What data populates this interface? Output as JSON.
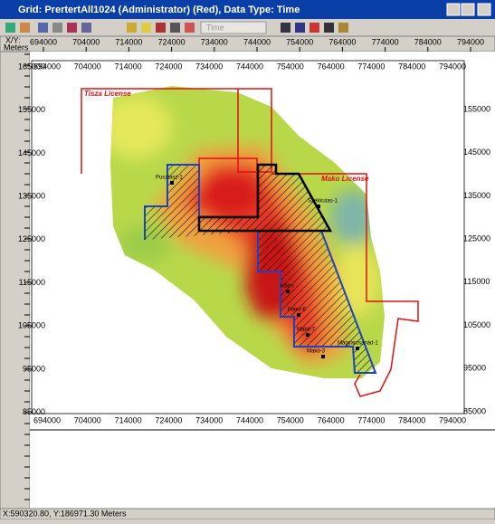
{
  "window": {
    "title": "Grid: PrertertAll1024 (Administrator) (Red), Data Type: Time"
  },
  "toolbar": {
    "dropdown": "Time"
  },
  "ruler": {
    "corner": [
      "X/Y:",
      "Meters"
    ],
    "x_labels": [
      "694000",
      "704000",
      "714000",
      "724000",
      "734000",
      "744000",
      "754000",
      "764000",
      "774000",
      "784000",
      "794000"
    ]
  },
  "map": {
    "x_labels": [
      "694000",
      "704000",
      "714000",
      "724000",
      "734000",
      "744000",
      "754000",
      "764000",
      "774000",
      "784000",
      "794000"
    ],
    "y_labels_left": [
      "165000",
      "155000",
      "145000",
      "135000",
      "125000",
      "115000",
      "105000",
      "95000",
      "85000"
    ],
    "y_labels_right": [
      "155000",
      "145000",
      "135000",
      "125000",
      "115000",
      "105000",
      "95000",
      "85000"
    ],
    "licenses": [
      "Tisza License",
      "Mako License"
    ],
    "wells": [
      "Pusztasz-1",
      "Székkutas-1",
      "Hód-I",
      "Makó-6",
      "Makó-7",
      "Makó-3",
      "Magyarcsanád-1"
    ]
  },
  "status": {
    "text": "X:590320.80, Y:186971.30 Meters"
  }
}
